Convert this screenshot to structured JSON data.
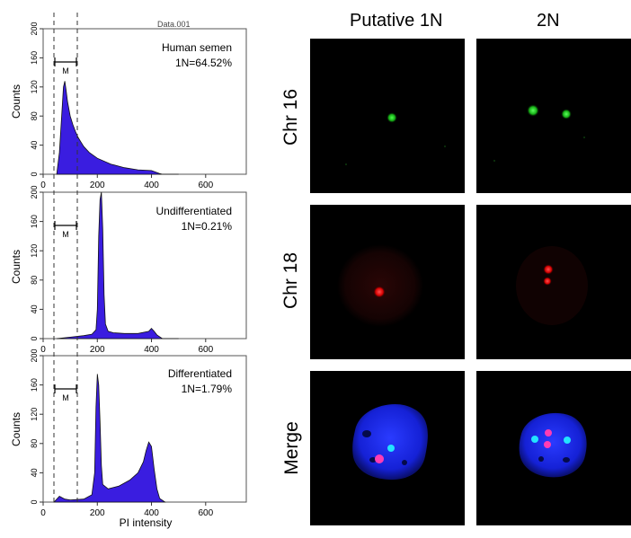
{
  "figure": {
    "file_label": "Data.001",
    "x_axis_label": "PI intensity",
    "y_axis_label": "Counts",
    "gate_label": "M",
    "histograms": [
      {
        "title": "Human semen",
        "stat": "1N=64.52%"
      },
      {
        "title": "Undifferentiated",
        "stat": "1N=0.21%"
      },
      {
        "title": "Differentiated",
        "stat": "1N=1.79%"
      }
    ],
    "microscopy": {
      "columns": [
        "Putative 1N",
        "2N"
      ],
      "rows": [
        "Chr 16",
        "Chr 18",
        "Merge"
      ]
    }
  },
  "chart_data": [
    {
      "type": "area",
      "title": "Human semen",
      "xlabel": "",
      "ylabel": "Counts",
      "xlim": [
        0,
        750
      ],
      "ylim": [
        0,
        200
      ],
      "x_ticks": [
        0,
        200,
        400,
        600
      ],
      "y_ticks": [
        0,
        40,
        80,
        120,
        160,
        200
      ],
      "annotations": [
        "Human semen",
        "1N=64.52%",
        "M"
      ],
      "x": [
        50,
        60,
        70,
        75,
        80,
        85,
        90,
        100,
        110,
        120,
        130,
        140,
        150,
        170,
        200,
        250,
        300,
        350,
        400,
        430,
        440,
        500
      ],
      "y": [
        0,
        30,
        90,
        120,
        128,
        115,
        100,
        80,
        68,
        58,
        50,
        44,
        38,
        30,
        22,
        14,
        9,
        6,
        5,
        1,
        0,
        0
      ]
    },
    {
      "type": "area",
      "title": "Undifferentiated",
      "xlabel": "",
      "ylabel": "Counts",
      "xlim": [
        0,
        750
      ],
      "ylim": [
        0,
        200
      ],
      "x_ticks": [
        0,
        200,
        400,
        600
      ],
      "y_ticks": [
        0,
        40,
        80,
        120,
        160,
        200
      ],
      "annotations": [
        "Undifferentiated",
        "1N=0.21%",
        "M"
      ],
      "x": [
        50,
        100,
        150,
        180,
        195,
        200,
        205,
        210,
        215,
        220,
        225,
        230,
        240,
        260,
        300,
        350,
        390,
        400,
        410,
        420,
        440,
        500
      ],
      "y": [
        0,
        2,
        4,
        6,
        12,
        40,
        140,
        190,
        200,
        150,
        60,
        20,
        10,
        8,
        7,
        7,
        10,
        14,
        10,
        5,
        0,
        0
      ]
    },
    {
      "type": "area",
      "title": "Differentiated",
      "xlabel": "PI intensity",
      "ylabel": "Counts",
      "xlim": [
        0,
        750
      ],
      "ylim": [
        0,
        200
      ],
      "x_ticks": [
        0,
        200,
        400,
        600
      ],
      "y_ticks": [
        0,
        40,
        80,
        120,
        160,
        200
      ],
      "annotations": [
        "Differentiated",
        "1N=1.79%",
        "M"
      ],
      "x": [
        40,
        60,
        80,
        100,
        150,
        180,
        190,
        195,
        200,
        205,
        210,
        215,
        220,
        240,
        280,
        320,
        350,
        370,
        380,
        390,
        400,
        410,
        420,
        430,
        450
      ],
      "y": [
        0,
        8,
        4,
        3,
        4,
        10,
        40,
        130,
        175,
        160,
        110,
        50,
        24,
        18,
        22,
        30,
        40,
        55,
        70,
        82,
        76,
        45,
        18,
        5,
        0
      ]
    }
  ]
}
